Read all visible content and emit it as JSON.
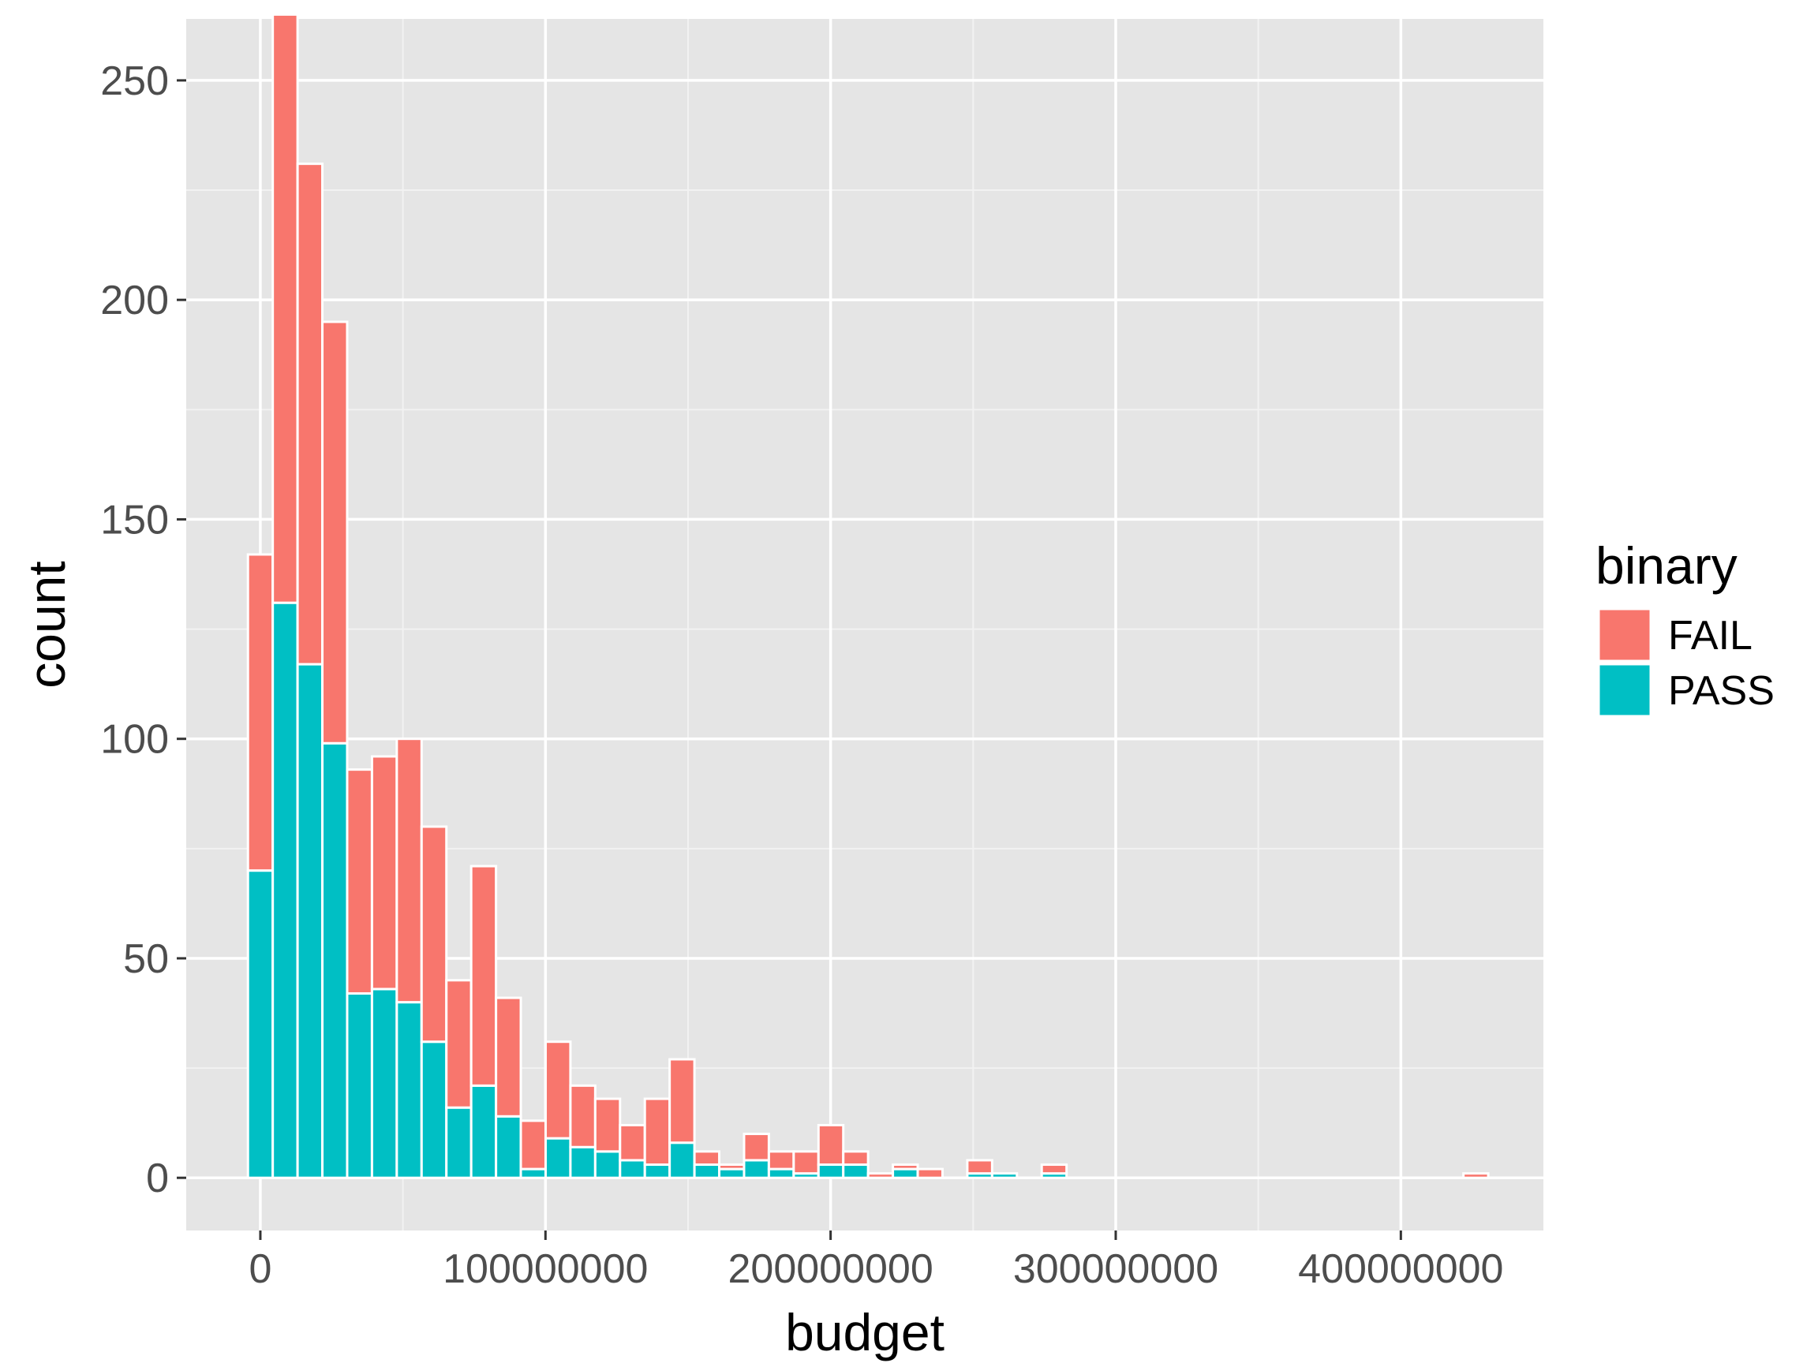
{
  "chart_data": {
    "type": "bar",
    "subtype": "stacked-histogram",
    "title": "",
    "xlabel": "budget",
    "ylabel": "count",
    "xlim": [
      -26000000,
      450000000
    ],
    "ylim": [
      -12,
      264
    ],
    "x_ticks": [
      0,
      100000000,
      200000000,
      300000000,
      400000000
    ],
    "x_tick_labels": [
      "0",
      "100000000",
      "200000000",
      "300000000",
      "400000000"
    ],
    "y_ticks": [
      0,
      50,
      100,
      150,
      200,
      250
    ],
    "y_tick_labels": [
      "0",
      "50",
      "100",
      "150",
      "200",
      "250"
    ],
    "grid": true,
    "legend": {
      "title": "binary",
      "placement": "right"
    },
    "bin_width": 8700000,
    "x": [
      0,
      8700000,
      17400000,
      26100000,
      34800000,
      43500000,
      52200000,
      60900000,
      69600000,
      78300000,
      87000000,
      95700000,
      104400000,
      113100000,
      121800000,
      130500000,
      139200000,
      147900000,
      156600000,
      165300000,
      174000000,
      182700000,
      191400000,
      200100000,
      208800000,
      217500000,
      226200000,
      234900000,
      243600000,
      252300000,
      261000000,
      269700000,
      278400000,
      287100000,
      295800000,
      304500000,
      313200000,
      321900000,
      330600000,
      339300000,
      348000000,
      356700000,
      365400000,
      374100000,
      382800000,
      391500000,
      400200000,
      408900000,
      417600000,
      426300000
    ],
    "series": [
      {
        "name": "FAIL",
        "color": "#F8766D",
        "values": [
          72,
          134,
          114,
          96,
          51,
          53,
          60,
          49,
          29,
          50,
          27,
          11,
          22,
          14,
          12,
          8,
          15,
          19,
          3,
          1,
          6,
          4,
          5,
          9,
          3,
          1,
          1,
          2,
          0,
          3,
          0,
          0,
          2,
          0,
          0,
          0,
          0,
          0,
          0,
          0,
          0,
          0,
          0,
          0,
          0,
          0,
          0,
          0,
          0,
          1
        ]
      },
      {
        "name": "PASS",
        "color": "#00BFC4",
        "values": [
          70,
          131,
          117,
          99,
          42,
          43,
          40,
          31,
          16,
          21,
          14,
          2,
          9,
          7,
          6,
          4,
          3,
          8,
          3,
          2,
          4,
          2,
          1,
          3,
          3,
          0,
          2,
          0,
          0,
          1,
          1,
          0,
          1,
          0,
          0,
          0,
          0,
          0,
          0,
          0,
          0,
          0,
          0,
          0,
          0,
          0,
          0,
          0,
          0,
          0
        ]
      }
    ]
  }
}
